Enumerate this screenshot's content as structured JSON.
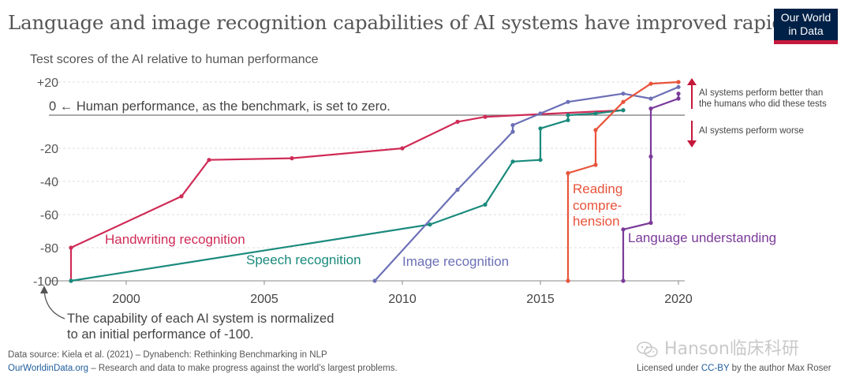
{
  "header": {
    "title": "Language and image recognition capabilities of AI systems have improved rapidly",
    "logo_line1": "Our World",
    "logo_line2": "in Data"
  },
  "colors": {
    "handwriting": "#cf2b56",
    "speech": "#1a8a7c",
    "image": "#6c70b6",
    "reading": "#e8533b",
    "language": "#7a3a99",
    "arrow": "#c4193b",
    "logo_bg": "#002147"
  },
  "chart_data": {
    "type": "line",
    "ylabel": "Test scores of the AI relative to human performance",
    "xlim": [
      1997.6,
      2020.3
    ],
    "ylim": [
      -100,
      22
    ],
    "x_ticks": [
      2000,
      2005,
      2010,
      2015,
      2020
    ],
    "y_ticks": [
      20,
      0,
      -20,
      -40,
      -60,
      -80,
      -100
    ],
    "y_tick_labels": [
      "+20",
      "0",
      "-20",
      "-40",
      "-60",
      "-80",
      "-100"
    ],
    "grid": true,
    "legend": "inline labels",
    "series": [
      {
        "key": "handwriting",
        "name": "Handwriting recognition",
        "x": [
          1998,
          1998,
          2002,
          2003,
          2006,
          2010,
          2012,
          2013,
          2018
        ],
        "y": [
          -100,
          -80,
          -49,
          -27,
          -26,
          -20,
          -4,
          -1,
          3
        ]
      },
      {
        "key": "speech",
        "name": "Speech recognition",
        "x": [
          1998,
          2011,
          2013,
          2014,
          2015,
          2015,
          2016,
          2016,
          2017,
          2018
        ],
        "y": [
          -100,
          -66,
          -54,
          -28,
          -27,
          -8,
          -3,
          0,
          1,
          3
        ]
      },
      {
        "key": "image",
        "name": "Image recognition",
        "x": [
          2009,
          2012,
          2014,
          2014,
          2015,
          2016,
          2018,
          2019,
          2020
        ],
        "y": [
          -100,
          -45,
          -10,
          -6,
          1,
          8,
          13,
          10,
          17
        ]
      },
      {
        "key": "reading",
        "name": "Reading compre-hension",
        "x": [
          2016,
          2016,
          2017,
          2017,
          2018,
          2019,
          2020
        ],
        "y": [
          -100,
          -35,
          -30,
          -9,
          8,
          19,
          20
        ]
      },
      {
        "key": "language",
        "name": "Language understanding",
        "x": [
          2018,
          2018,
          2019,
          2019,
          2019,
          2020,
          2020
        ],
        "y": [
          -100,
          -69,
          -65,
          -25,
          4,
          10,
          13
        ]
      }
    ],
    "annotations": {
      "human_performance": "0 ← Human performance, as the benchmark, is set to zero.",
      "better": "AI systems perform better than the humans who did these tests",
      "better_line1": "AI systems perform better than",
      "better_line2": "the humans who did these tests",
      "worse": "AI systems perform worse",
      "reading_label_1": "Reading",
      "reading_label_2": "compre-",
      "reading_label_3": "hension",
      "normalized_line1": "The capability of each AI system is normalized",
      "normalized_line2": "to an initial performance of -100."
    }
  },
  "footer": {
    "source": "Data source: Kiela et al. (2021) – Dynabench: Rethinking Benchmarking in NLP",
    "owid_link": "OurWorldinData.org",
    "owid_tagline": "– Research and data to make progress against the world’s largest problems.",
    "license_prefix": "Licensed under",
    "license_link": "CC-BY",
    "license_suffix": "by the author Max Roser"
  },
  "watermark": {
    "text": "Hanson临床科研",
    "icon": "wechat-icon"
  }
}
